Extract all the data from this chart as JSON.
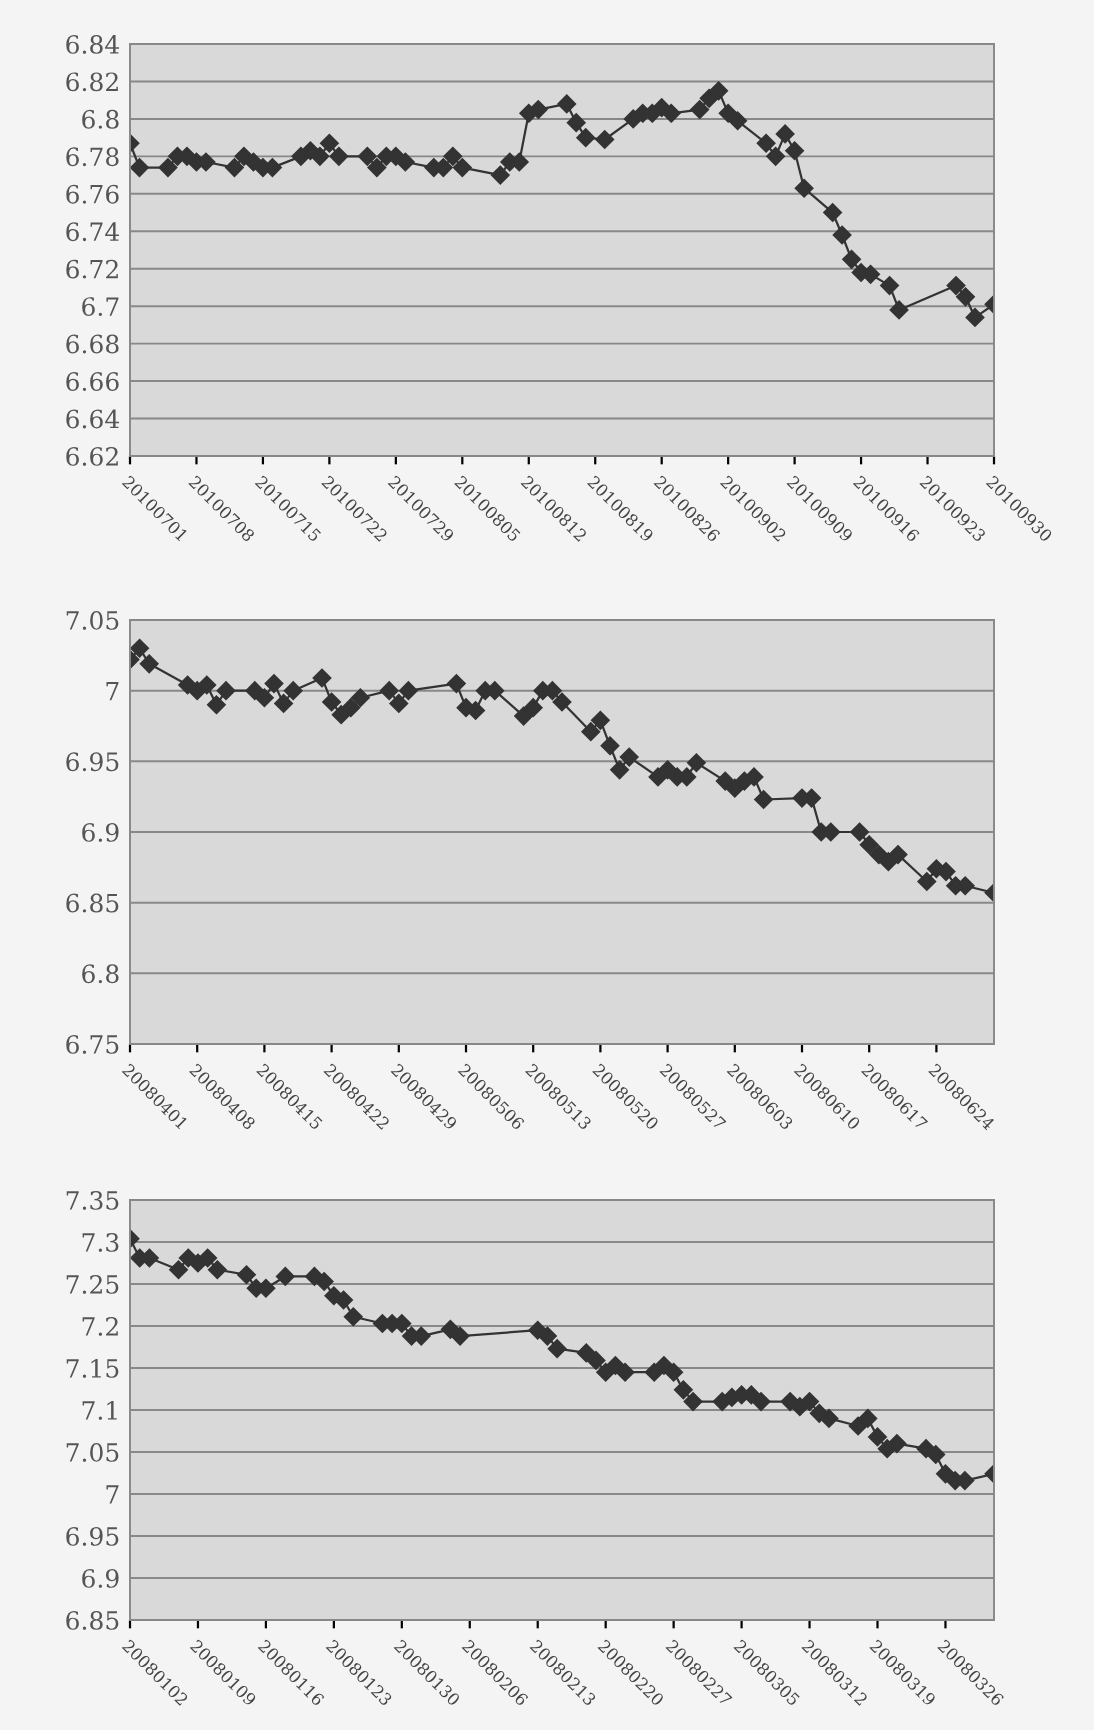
{
  "chart_data": [
    {
      "type": "line",
      "marker": "diamond",
      "line_style": "solid",
      "grid": "y",
      "legend": false,
      "series": [
        {
          "color": "#333333",
          "x": [
            "2010-07-01",
            "2010-07-02",
            "2010-07-05",
            "2010-07-06",
            "2010-07-07",
            "2010-07-08",
            "2010-07-09",
            "2010-07-12",
            "2010-07-13",
            "2010-07-14",
            "2010-07-15",
            "2010-07-16",
            "2010-07-19",
            "2010-07-20",
            "2010-07-21",
            "2010-07-22",
            "2010-07-23",
            "2010-07-26",
            "2010-07-27",
            "2010-07-28",
            "2010-07-29",
            "2010-07-30",
            "2010-08-02",
            "2010-08-03",
            "2010-08-04",
            "2010-08-05",
            "2010-08-09",
            "2010-08-10",
            "2010-08-11",
            "2010-08-12",
            "2010-08-13",
            "2010-08-16",
            "2010-08-17",
            "2010-08-18",
            "2010-08-20",
            "2010-08-23",
            "2010-08-24",
            "2010-08-25",
            "2010-08-26",
            "2010-08-27",
            "2010-08-30",
            "2010-08-31",
            "2010-09-01",
            "2010-09-02",
            "2010-09-03",
            "2010-09-06",
            "2010-09-07",
            "2010-09-08",
            "2010-09-09",
            "2010-09-10",
            "2010-09-13",
            "2010-09-14",
            "2010-09-15",
            "2010-09-16",
            "2010-09-17",
            "2010-09-19",
            "2010-09-20",
            "2010-09-26",
            "2010-09-27",
            "2010-09-28",
            "2010-09-30"
          ],
          "values": [
            6.787,
            6.774,
            6.774,
            6.78,
            6.78,
            6.777,
            6.777,
            6.774,
            6.78,
            6.777,
            6.774,
            6.774,
            6.78,
            6.783,
            6.78,
            6.787,
            6.78,
            6.78,
            6.774,
            6.78,
            6.78,
            6.777,
            6.774,
            6.774,
            6.78,
            6.774,
            6.77,
            6.777,
            6.777,
            6.803,
            6.805,
            6.808,
            6.798,
            6.79,
            6.789,
            6.8,
            6.803,
            6.803,
            6.806,
            6.803,
            6.805,
            6.811,
            6.815,
            6.803,
            6.799,
            6.787,
            6.78,
            6.792,
            6.783,
            6.763,
            6.75,
            6.738,
            6.725,
            6.718,
            6.717,
            6.711,
            6.698,
            6.711,
            6.705,
            6.694,
            6.701
          ]
        }
      ],
      "ylim": [
        6.62,
        6.84
      ],
      "yticks": [
        6.62,
        6.64,
        6.66,
        6.68,
        6.7,
        6.72,
        6.74,
        6.76,
        6.78,
        6.8,
        6.82,
        6.84
      ],
      "xlim": [
        "2010-07-01",
        "2010-09-30"
      ],
      "xticks": [
        {
          "value": "2010-07-01",
          "label": "20100701"
        },
        {
          "value": "2010-07-08",
          "label": "20100708"
        },
        {
          "value": "2010-07-15",
          "label": "20100715"
        },
        {
          "value": "2010-07-22",
          "label": "20100722"
        },
        {
          "value": "2010-07-29",
          "label": "20100729"
        },
        {
          "value": "2010-08-05",
          "label": "20100805"
        },
        {
          "value": "2010-08-12",
          "label": "20100812"
        },
        {
          "value": "2010-08-19",
          "label": "20100819"
        },
        {
          "value": "2010-08-26",
          "label": "20100826"
        },
        {
          "value": "2010-09-02",
          "label": "20100902"
        },
        {
          "value": "2010-09-09",
          "label": "20100909"
        },
        {
          "value": "2010-09-16",
          "label": "20100916"
        },
        {
          "value": "2010-09-23",
          "label": "20100923"
        },
        {
          "value": "2010-09-30",
          "label": "20100930"
        }
      ]
    },
    {
      "type": "line",
      "marker": "diamond",
      "line_style": "solid",
      "grid": "y",
      "legend": false,
      "series": [
        {
          "color": "#333333",
          "x": [
            "2008-04-01",
            "2008-04-02",
            "2008-04-03",
            "2008-04-07",
            "2008-04-08",
            "2008-04-09",
            "2008-04-10",
            "2008-04-11",
            "2008-04-14",
            "2008-04-15",
            "2008-04-16",
            "2008-04-17",
            "2008-04-18",
            "2008-04-21",
            "2008-04-22",
            "2008-04-23",
            "2008-04-24",
            "2008-04-25",
            "2008-04-28",
            "2008-04-29",
            "2008-04-30",
            "2008-05-05",
            "2008-05-06",
            "2008-05-07",
            "2008-05-08",
            "2008-05-09",
            "2008-05-12",
            "2008-05-13",
            "2008-05-14",
            "2008-05-15",
            "2008-05-16",
            "2008-05-19",
            "2008-05-20",
            "2008-05-21",
            "2008-05-22",
            "2008-05-23",
            "2008-05-26",
            "2008-05-27",
            "2008-05-28",
            "2008-05-29",
            "2008-05-30",
            "2008-06-02",
            "2008-06-03",
            "2008-06-04",
            "2008-06-05",
            "2008-06-06",
            "2008-06-10",
            "2008-06-11",
            "2008-06-12",
            "2008-06-13",
            "2008-06-16",
            "2008-06-17",
            "2008-06-18",
            "2008-06-19",
            "2008-06-20",
            "2008-06-23",
            "2008-06-24",
            "2008-06-25",
            "2008-06-26",
            "2008-06-27",
            "2008-06-30"
          ],
          "values": [
            7.022,
            7.03,
            7.019,
            7.004,
            7.0,
            7.004,
            6.99,
            7.0,
            7.0,
            6.995,
            7.005,
            6.991,
            7.0,
            7.009,
            6.992,
            6.983,
            6.988,
            6.995,
            7.0,
            6.991,
            7.0,
            7.005,
            6.988,
            6.986,
            7.0,
            7.0,
            6.982,
            6.988,
            7.0,
            7.0,
            6.992,
            6.971,
            6.979,
            6.961,
            6.944,
            6.953,
            6.939,
            6.944,
            6.939,
            6.939,
            6.949,
            6.936,
            6.931,
            6.936,
            6.939,
            6.923,
            6.924,
            6.924,
            6.9,
            6.9,
            6.9,
            6.891,
            6.884,
            6.879,
            6.884,
            6.865,
            6.874,
            6.872,
            6.862,
            6.862,
            6.857
          ]
        }
      ],
      "ylim": [
        6.75,
        7.05
      ],
      "yticks": [
        6.75,
        6.8,
        6.85,
        6.9,
        6.95,
        7,
        7.05
      ],
      "xlim": [
        "2008-04-01",
        "2008-06-30"
      ],
      "xticks": [
        {
          "value": "2008-04-01",
          "label": "20080401"
        },
        {
          "value": "2008-04-08",
          "label": "20080408"
        },
        {
          "value": "2008-04-15",
          "label": "20080415"
        },
        {
          "value": "2008-04-22",
          "label": "20080422"
        },
        {
          "value": "2008-04-29",
          "label": "20080429"
        },
        {
          "value": "2008-05-06",
          "label": "20080506"
        },
        {
          "value": "2008-05-13",
          "label": "20080513"
        },
        {
          "value": "2008-05-20",
          "label": "20080520"
        },
        {
          "value": "2008-05-27",
          "label": "20080527"
        },
        {
          "value": "2008-06-03",
          "label": "20080603"
        },
        {
          "value": "2008-06-10",
          "label": "20080610"
        },
        {
          "value": "2008-06-17",
          "label": "20080617"
        },
        {
          "value": "2008-06-24",
          "label": "20080624"
        }
      ]
    },
    {
      "type": "line",
      "marker": "diamond",
      "line_style": "solid",
      "grid": "y",
      "legend": false,
      "series": [
        {
          "color": "#333333",
          "x": [
            "2008-01-02",
            "2008-01-03",
            "2008-01-04",
            "2008-01-07",
            "2008-01-08",
            "2008-01-09",
            "2008-01-10",
            "2008-01-11",
            "2008-01-14",
            "2008-01-15",
            "2008-01-16",
            "2008-01-18",
            "2008-01-21",
            "2008-01-22",
            "2008-01-23",
            "2008-01-24",
            "2008-01-25",
            "2008-01-28",
            "2008-01-29",
            "2008-01-30",
            "2008-01-31",
            "2008-02-01",
            "2008-02-04",
            "2008-02-05",
            "2008-02-13",
            "2008-02-14",
            "2008-02-15",
            "2008-02-18",
            "2008-02-19",
            "2008-02-20",
            "2008-02-21",
            "2008-02-22",
            "2008-02-25",
            "2008-02-26",
            "2008-02-27",
            "2008-02-28",
            "2008-02-29",
            "2008-03-03",
            "2008-03-04",
            "2008-03-05",
            "2008-03-06",
            "2008-03-07",
            "2008-03-10",
            "2008-03-11",
            "2008-03-12",
            "2008-03-13",
            "2008-03-14",
            "2008-03-17",
            "2008-03-18",
            "2008-03-19",
            "2008-03-20",
            "2008-03-21",
            "2008-03-24",
            "2008-03-25",
            "2008-03-26",
            "2008-03-27",
            "2008-03-28",
            "2008-03-31"
          ],
          "values": [
            7.304,
            7.281,
            7.281,
            7.267,
            7.281,
            7.275,
            7.281,
            7.267,
            7.261,
            7.245,
            7.245,
            7.259,
            7.259,
            7.253,
            7.236,
            7.231,
            7.211,
            7.203,
            7.203,
            7.203,
            7.188,
            7.188,
            7.196,
            7.188,
            7.195,
            7.188,
            7.173,
            7.168,
            7.159,
            7.145,
            7.153,
            7.145,
            7.145,
            7.153,
            7.145,
            7.124,
            7.11,
            7.11,
            7.115,
            7.118,
            7.118,
            7.11,
            7.11,
            7.104,
            7.11,
            7.096,
            7.09,
            7.081,
            7.09,
            7.068,
            7.054,
            7.06,
            7.054,
            7.047,
            7.024,
            7.016,
            7.016,
            7.024
          ]
        }
      ],
      "ylim": [
        6.85,
        7.35
      ],
      "yticks": [
        6.85,
        6.9,
        6.95,
        7,
        7.05,
        7.1,
        7.15,
        7.2,
        7.25,
        7.3,
        7.35
      ],
      "xlim": [
        "2008-01-02",
        "2008-03-31"
      ],
      "xticks": [
        {
          "value": "2008-01-02",
          "label": "20080102"
        },
        {
          "value": "2008-01-09",
          "label": "20080109"
        },
        {
          "value": "2008-01-16",
          "label": "20080116"
        },
        {
          "value": "2008-01-23",
          "label": "20080123"
        },
        {
          "value": "2008-01-30",
          "label": "20080130"
        },
        {
          "value": "2008-02-06",
          "label": "20080206"
        },
        {
          "value": "2008-02-13",
          "label": "20080213"
        },
        {
          "value": "2008-02-20",
          "label": "20080220"
        },
        {
          "value": "2008-02-27",
          "label": "20080227"
        },
        {
          "value": "2008-03-05",
          "label": "20080305"
        },
        {
          "value": "2008-03-12",
          "label": "20080312"
        },
        {
          "value": "2008-03-19",
          "label": "20080319"
        },
        {
          "value": "2008-03-26",
          "label": "20080326"
        }
      ]
    }
  ]
}
